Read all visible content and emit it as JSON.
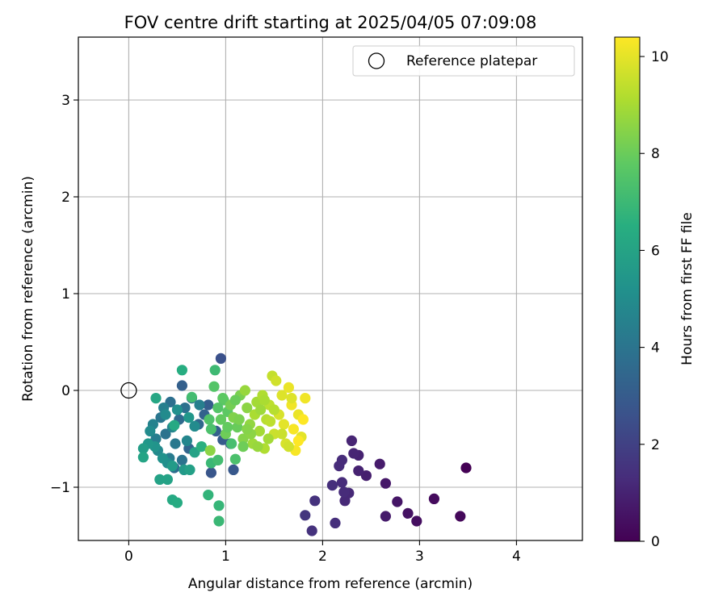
{
  "chart_data": {
    "type": "scatter",
    "title": "FOV centre drift starting at 2025/04/05 07:09:08",
    "xlabel": "Angular distance from reference (arcmin)",
    "ylabel": "Rotation from reference (arcmin)",
    "xlim": [
      -0.52,
      4.68
    ],
    "ylim": [
      -1.55,
      3.65
    ],
    "xticks": [
      0,
      1,
      2,
      3,
      4
    ],
    "xtick_labels": [
      "0",
      "1",
      "2",
      "3",
      "4"
    ],
    "yticks": [
      -1,
      0,
      1,
      2,
      3
    ],
    "ytick_labels": [
      "−1",
      "0",
      "1",
      "2",
      "3"
    ],
    "grid": true,
    "legend": {
      "placement": "top-right",
      "entries": [
        "Reference platepar"
      ]
    },
    "reference_point": {
      "x": 0,
      "y": 0,
      "label": "Reference platepar"
    },
    "colorbar": {
      "label": "Hours from first FF file",
      "min": 0,
      "max": 10.4,
      "ticks": [
        0,
        2,
        4,
        6,
        8,
        10
      ],
      "tick_labels": [
        "0",
        "2",
        "4",
        "6",
        "8",
        "10"
      ],
      "colormap": "viridis"
    },
    "points": [
      {
        "x": 3.48,
        "y": -0.8,
        "h": 0.0
      },
      {
        "x": 3.42,
        "y": -1.3,
        "h": 0.2
      },
      {
        "x": 3.15,
        "y": -1.12,
        "h": 0.3
      },
      {
        "x": 2.97,
        "y": -1.35,
        "h": 0.4
      },
      {
        "x": 2.88,
        "y": -1.27,
        "h": 0.5
      },
      {
        "x": 2.77,
        "y": -1.15,
        "h": 0.6
      },
      {
        "x": 2.65,
        "y": -0.96,
        "h": 0.7
      },
      {
        "x": 2.65,
        "y": -1.3,
        "h": 0.8
      },
      {
        "x": 2.59,
        "y": -0.76,
        "h": 0.8
      },
      {
        "x": 2.45,
        "y": -0.88,
        "h": 0.9
      },
      {
        "x": 2.37,
        "y": -0.67,
        "h": 1.0
      },
      {
        "x": 2.37,
        "y": -0.83,
        "h": 1.0
      },
      {
        "x": 2.3,
        "y": -0.52,
        "h": 1.1
      },
      {
        "x": 2.32,
        "y": -0.65,
        "h": 1.1
      },
      {
        "x": 2.27,
        "y": -1.06,
        "h": 1.2
      },
      {
        "x": 2.23,
        "y": -1.14,
        "h": 1.2
      },
      {
        "x": 2.2,
        "y": -0.95,
        "h": 1.3
      },
      {
        "x": 2.17,
        "y": -0.78,
        "h": 1.3
      },
      {
        "x": 2.2,
        "y": -0.72,
        "h": 1.3
      },
      {
        "x": 2.13,
        "y": -1.37,
        "h": 1.4
      },
      {
        "x": 2.1,
        "y": -0.98,
        "h": 1.4
      },
      {
        "x": 1.92,
        "y": -1.14,
        "h": 1.5
      },
      {
        "x": 1.89,
        "y": -1.45,
        "h": 1.5
      },
      {
        "x": 1.82,
        "y": -1.29,
        "h": 1.6
      },
      {
        "x": 2.22,
        "y": -1.05,
        "h": 1.3
      },
      {
        "x": 0.95,
        "y": 0.33,
        "h": 2.6
      },
      {
        "x": 0.85,
        "y": -0.85,
        "h": 2.8
      },
      {
        "x": 1.08,
        "y": -0.82,
        "h": 2.9
      },
      {
        "x": 0.97,
        "y": -0.51,
        "h": 3.0
      },
      {
        "x": 0.82,
        "y": -0.15,
        "h": 3.1
      },
      {
        "x": 0.55,
        "y": 0.05,
        "h": 3.2
      },
      {
        "x": 1.05,
        "y": -0.55,
        "h": 3.1
      },
      {
        "x": 0.78,
        "y": -0.25,
        "h": 3.3
      },
      {
        "x": 0.9,
        "y": -0.42,
        "h": 3.2
      },
      {
        "x": 0.62,
        "y": -0.6,
        "h": 3.4
      },
      {
        "x": 0.72,
        "y": -0.35,
        "h": 3.5
      },
      {
        "x": 0.52,
        "y": -0.3,
        "h": 3.6
      },
      {
        "x": 0.47,
        "y": -0.8,
        "h": 3.7
      },
      {
        "x": 0.43,
        "y": -0.12,
        "h": 3.8
      },
      {
        "x": 0.58,
        "y": -0.18,
        "h": 3.9
      },
      {
        "x": 0.38,
        "y": -0.45,
        "h": 4.0
      },
      {
        "x": 0.33,
        "y": -0.28,
        "h": 4.1
      },
      {
        "x": 0.48,
        "y": -0.55,
        "h": 4.2
      },
      {
        "x": 0.42,
        "y": -0.7,
        "h": 4.3
      },
      {
        "x": 0.28,
        "y": -0.5,
        "h": 4.4
      },
      {
        "x": 0.65,
        "y": -0.08,
        "h": 3.8
      },
      {
        "x": 0.55,
        "y": -0.72,
        "h": 4.0
      },
      {
        "x": 0.36,
        "y": -0.18,
        "h": 4.5
      },
      {
        "x": 0.25,
        "y": -0.35,
        "h": 4.6
      },
      {
        "x": 0.45,
        "y": -0.38,
        "h": 4.7
      },
      {
        "x": 0.6,
        "y": -0.52,
        "h": 4.8
      },
      {
        "x": 0.3,
        "y": -0.62,
        "h": 4.9
      },
      {
        "x": 0.22,
        "y": -0.42,
        "h": 5.0
      },
      {
        "x": 0.4,
        "y": -0.75,
        "h": 5.1
      },
      {
        "x": 0.5,
        "y": -0.2,
        "h": 5.2
      },
      {
        "x": 0.35,
        "y": -0.7,
        "h": 5.3
      },
      {
        "x": 0.27,
        "y": -0.58,
        "h": 5.4
      },
      {
        "x": 0.2,
        "y": -0.55,
        "h": 5.5
      },
      {
        "x": 0.68,
        "y": -0.37,
        "h": 5.0
      },
      {
        "x": 0.57,
        "y": -0.82,
        "h": 5.6
      },
      {
        "x": 0.15,
        "y": -0.6,
        "h": 5.8
      },
      {
        "x": 0.45,
        "y": -0.78,
        "h": 5.7
      },
      {
        "x": 0.32,
        "y": -0.92,
        "h": 6.0
      },
      {
        "x": 0.4,
        "y": -0.92,
        "h": 6.0
      },
      {
        "x": 0.63,
        "y": -0.82,
        "h": 5.9
      },
      {
        "x": 0.15,
        "y": -0.69,
        "h": 6.1
      },
      {
        "x": 0.68,
        "y": -0.64,
        "h": 6.0
      },
      {
        "x": 0.45,
        "y": -1.13,
        "h": 6.3
      },
      {
        "x": 0.5,
        "y": -1.16,
        "h": 6.4
      },
      {
        "x": 0.28,
        "y": -0.08,
        "h": 6.2
      },
      {
        "x": 0.55,
        "y": 0.21,
        "h": 6.5
      },
      {
        "x": 0.47,
        "y": -0.36,
        "h": 6.3
      },
      {
        "x": 0.75,
        "y": -0.58,
        "h": 6.6
      },
      {
        "x": 0.82,
        "y": -1.08,
        "h": 6.8
      },
      {
        "x": 0.93,
        "y": -1.19,
        "h": 6.9
      },
      {
        "x": 0.93,
        "y": -1.35,
        "h": 7.0
      },
      {
        "x": 0.89,
        "y": 0.21,
        "h": 7.1
      },
      {
        "x": 0.65,
        "y": -0.07,
        "h": 7.2
      },
      {
        "x": 0.85,
        "y": -0.75,
        "h": 7.0
      },
      {
        "x": 0.92,
        "y": -0.72,
        "h": 7.2
      },
      {
        "x": 1.1,
        "y": -0.71,
        "h": 7.4
      },
      {
        "x": 0.83,
        "y": -0.3,
        "h": 7.5
      },
      {
        "x": 0.88,
        "y": 0.04,
        "h": 7.6
      },
      {
        "x": 0.98,
        "y": -0.1,
        "h": 7.7
      },
      {
        "x": 1.02,
        "y": -0.22,
        "h": 7.8
      },
      {
        "x": 0.95,
        "y": -0.3,
        "h": 7.9
      },
      {
        "x": 1.12,
        "y": -0.38,
        "h": 8.0
      },
      {
        "x": 1.0,
        "y": -0.45,
        "h": 8.1
      },
      {
        "x": 1.05,
        "y": -0.15,
        "h": 8.2
      },
      {
        "x": 1.15,
        "y": -0.05,
        "h": 8.3
      },
      {
        "x": 1.08,
        "y": -0.28,
        "h": 8.4
      },
      {
        "x": 1.18,
        "y": -0.5,
        "h": 8.5
      },
      {
        "x": 1.22,
        "y": -0.18,
        "h": 8.6
      },
      {
        "x": 1.25,
        "y": -0.35,
        "h": 8.7
      },
      {
        "x": 1.2,
        "y": 0.0,
        "h": 8.8
      },
      {
        "x": 1.28,
        "y": -0.55,
        "h": 8.9
      },
      {
        "x": 1.32,
        "y": -0.12,
        "h": 9.0
      },
      {
        "x": 1.35,
        "y": -0.42,
        "h": 9.0
      },
      {
        "x": 1.3,
        "y": -0.25,
        "h": 9.1
      },
      {
        "x": 1.38,
        "y": -0.05,
        "h": 9.2
      },
      {
        "x": 1.4,
        "y": -0.6,
        "h": 9.2
      },
      {
        "x": 1.42,
        "y": -0.3,
        "h": 9.3
      },
      {
        "x": 1.45,
        "y": -0.15,
        "h": 9.4
      },
      {
        "x": 1.48,
        "y": 0.15,
        "h": 9.5
      },
      {
        "x": 1.5,
        "y": -0.45,
        "h": 9.6
      },
      {
        "x": 1.52,
        "y": 0.1,
        "h": 9.7
      },
      {
        "x": 1.55,
        "y": -0.25,
        "h": 9.8
      },
      {
        "x": 1.58,
        "y": -0.05,
        "h": 9.9
      },
      {
        "x": 1.6,
        "y": -0.35,
        "h": 10.0
      },
      {
        "x": 1.62,
        "y": -0.55,
        "h": 9.8
      },
      {
        "x": 1.65,
        "y": 0.03,
        "h": 10.1
      },
      {
        "x": 1.68,
        "y": -0.15,
        "h": 10.2
      },
      {
        "x": 1.7,
        "y": -0.4,
        "h": 10.3
      },
      {
        "x": 1.72,
        "y": -0.62,
        "h": 10.3
      },
      {
        "x": 1.75,
        "y": -0.25,
        "h": 10.1
      },
      {
        "x": 1.78,
        "y": -0.48,
        "h": 10.0
      },
      {
        "x": 1.82,
        "y": -0.08,
        "h": 10.2
      },
      {
        "x": 1.8,
        "y": -0.3,
        "h": 10.4
      },
      {
        "x": 1.65,
        "y": -0.58,
        "h": 9.7
      },
      {
        "x": 1.44,
        "y": -0.5,
        "h": 9.0
      },
      {
        "x": 1.36,
        "y": -0.2,
        "h": 8.9
      },
      {
        "x": 1.26,
        "y": -0.45,
        "h": 8.6
      },
      {
        "x": 1.14,
        "y": -0.3,
        "h": 8.3
      },
      {
        "x": 1.02,
        "y": -0.38,
        "h": 7.9
      },
      {
        "x": 0.92,
        "y": -0.18,
        "h": 7.6
      },
      {
        "x": 0.85,
        "y": -0.4,
        "h": 7.4
      },
      {
        "x": 1.1,
        "y": -0.1,
        "h": 8.0
      },
      {
        "x": 1.5,
        "y": -0.2,
        "h": 9.3
      },
      {
        "x": 1.58,
        "y": -0.45,
        "h": 9.6
      },
      {
        "x": 1.33,
        "y": -0.58,
        "h": 8.8
      },
      {
        "x": 0.84,
        "y": -0.62,
        "h": 8.6
      },
      {
        "x": 1.18,
        "y": -0.58,
        "h": 8.1
      },
      {
        "x": 1.68,
        "y": -0.08,
        "h": 9.9
      },
      {
        "x": 1.4,
        "y": -0.1,
        "h": 9.1
      },
      {
        "x": 1.22,
        "y": -0.4,
        "h": 8.5
      },
      {
        "x": 1.75,
        "y": -0.52,
        "h": 10.4
      },
      {
        "x": 0.97,
        "y": -0.08,
        "h": 7.8
      },
      {
        "x": 1.46,
        "y": -0.32,
        "h": 9.4
      },
      {
        "x": 1.06,
        "y": -0.55,
        "h": 7.3
      },
      {
        "x": 0.62,
        "y": -0.28,
        "h": 5.5
      },
      {
        "x": 0.38,
        "y": -0.25,
        "h": 5.0
      },
      {
        "x": 0.73,
        "y": -0.15,
        "h": 4.5
      }
    ]
  }
}
